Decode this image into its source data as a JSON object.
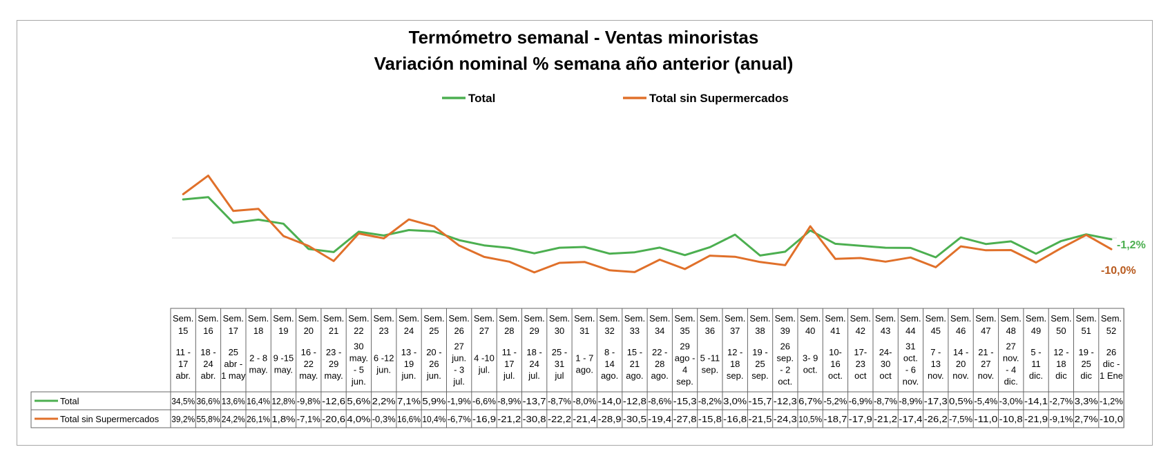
{
  "chart_data": {
    "type": "line",
    "title": "Termómetro semanal - Ventas minoristas",
    "subtitle": "Variación nominal % semana año anterior (anual)",
    "legend_position": "top",
    "grid": false,
    "baseline_value": 0,
    "ylim": [
      -40,
      70
    ],
    "colors": {
      "Total": "#4caf50",
      "Total sin Supermercados": "#e0702a"
    },
    "categories": [
      {
        "week": "Sem. 15",
        "dates": "11 - 17 abr."
      },
      {
        "week": "Sem. 16",
        "dates": "18 - 24 abr."
      },
      {
        "week": "Sem. 17",
        "dates": "25 abr - 1 may"
      },
      {
        "week": "Sem. 18",
        "dates": "2 - 8 may."
      },
      {
        "week": "Sem. 19",
        "dates": "9 -15 may."
      },
      {
        "week": "Sem. 20",
        "dates": "16 - 22 may."
      },
      {
        "week": "Sem. 21",
        "dates": "23 - 29 may."
      },
      {
        "week": "Sem. 22",
        "dates": "30 may. - 5 jun."
      },
      {
        "week": "Sem. 23",
        "dates": "6 -12 jun."
      },
      {
        "week": "Sem. 24",
        "dates": "13 - 19 jun."
      },
      {
        "week": "Sem. 25",
        "dates": "20 - 26 jun."
      },
      {
        "week": "Sem. 26",
        "dates": "27 jun. - 3 jul."
      },
      {
        "week": "Sem. 27",
        "dates": "4 -10 jul."
      },
      {
        "week": "Sem. 28",
        "dates": "11 - 17 jul."
      },
      {
        "week": "Sem. 29",
        "dates": "18 - 24 jul."
      },
      {
        "week": "Sem. 30",
        "dates": "25 - 31 jul"
      },
      {
        "week": "Sem. 31",
        "dates": "1 - 7 ago."
      },
      {
        "week": "Sem. 32",
        "dates": "8 - 14 ago."
      },
      {
        "week": "Sem. 33",
        "dates": "15 - 21 ago."
      },
      {
        "week": "Sem. 34",
        "dates": "22 - 28 ago."
      },
      {
        "week": "Sem. 35",
        "dates": "29 ago - 4 sep."
      },
      {
        "week": "Sem. 36",
        "dates": "5 -11 sep."
      },
      {
        "week": "Sem. 37",
        "dates": "12 - 18 sep."
      },
      {
        "week": "Sem. 38",
        "dates": "19 - 25 sep."
      },
      {
        "week": "Sem. 39",
        "dates": "26 sep. - 2 oct."
      },
      {
        "week": "Sem. 40",
        "dates": "3- 9 oct."
      },
      {
        "week": "Sem. 41",
        "dates": "10- 16 oct."
      },
      {
        "week": "Sem. 42",
        "dates": "17- 23 oct"
      },
      {
        "week": "Sem. 43",
        "dates": "24- 30 oct"
      },
      {
        "week": "Sem. 44",
        "dates": "31 oct. - 6 nov."
      },
      {
        "week": "Sem. 45",
        "dates": "7 - 13 nov."
      },
      {
        "week": "Sem. 46",
        "dates": "14 - 20 nov."
      },
      {
        "week": "Sem. 47",
        "dates": "21 - 27 nov."
      },
      {
        "week": "Sem. 48",
        "dates": "27 nov. - 4 dic."
      },
      {
        "week": "Sem. 49",
        "dates": "5 - 11 dic."
      },
      {
        "week": "Sem. 50",
        "dates": "12 - 18 dic"
      },
      {
        "week": "Sem. 51",
        "dates": "19 - 25 dic"
      },
      {
        "week": "Sem. 52",
        "dates": "26 dic - 1 Ene"
      }
    ],
    "series": [
      {
        "name": "Total",
        "end_label": "-1,2%",
        "values": [
          34.5,
          36.6,
          13.6,
          16.4,
          12.8,
          -9.8,
          -12.6,
          5.6,
          2.2,
          7.1,
          5.9,
          -1.9,
          -6.6,
          -8.9,
          -13.7,
          -8.7,
          -8.0,
          -14.0,
          -12.8,
          -8.6,
          -15.3,
          -8.2,
          3.0,
          -15.7,
          -12.3,
          6.7,
          -5.2,
          -6.9,
          -8.7,
          -8.9,
          -17.3,
          0.5,
          -5.4,
          -3.0,
          -14.1,
          -2.7,
          3.3,
          -1.2
        ],
        "labels": [
          "34,5%",
          "36,6%",
          "13,6%",
          "16,4%",
          "12,8%",
          "-9,8%",
          "-12,6",
          "5,6%",
          "2,2%",
          "7,1%",
          "5,9%",
          "-1,9%",
          "-6,6%",
          "-8,9%",
          "-13,7",
          "-8,7%",
          "-8,0%",
          "-14,0",
          "-12,8",
          "-8,6%",
          "-15,3",
          "-8,2%",
          "3,0%",
          "-15,7",
          "-12,3",
          "6,7%",
          "-5,2%",
          "-6,9%",
          "-8,7%",
          "-8,9%",
          "-17,3",
          "0,5%",
          "-5,4%",
          "-3,0%",
          "-14,1",
          "-2,7%",
          "3,3%",
          "-1,2%"
        ]
      },
      {
        "name": "Total sin Supermercados",
        "end_label": "-10,0%",
        "values": [
          39.2,
          55.8,
          24.2,
          26.1,
          1.8,
          -7.1,
          -20.6,
          4.0,
          -0.3,
          16.6,
          10.4,
          -6.7,
          -16.9,
          -21.2,
          -30.8,
          -22.2,
          -21.4,
          -28.9,
          -30.5,
          -19.4,
          -27.8,
          -15.8,
          -16.8,
          -21.5,
          -24.3,
          10.5,
          -18.7,
          -17.9,
          -21.2,
          -17.4,
          -26.2,
          -7.5,
          -11.0,
          -10.8,
          -21.9,
          -9.1,
          2.7,
          -10.0
        ],
        "labels": [
          "39,2%",
          "55,8%",
          "24,2%",
          "26,1%",
          "1,8%",
          "-7,1%",
          "-20,6",
          "4,0%",
          "-0,3%",
          "16,6%",
          "10,4%",
          "-6,7%",
          "-16,9",
          "-21,2",
          "-30,8",
          "-22,2",
          "-21,4",
          "-28,9",
          "-30,5",
          "-19,4",
          "-27,8",
          "-15,8",
          "-16,8",
          "-21,5",
          "-24,3",
          "10,5%",
          "-18,7",
          "-17,9",
          "-21,2",
          "-17,4",
          "-26,2",
          "-7,5%",
          "-11,0",
          "-10,8",
          "-21,9",
          "-9,1%",
          "2,7%",
          "-10,0"
        ]
      }
    ]
  }
}
